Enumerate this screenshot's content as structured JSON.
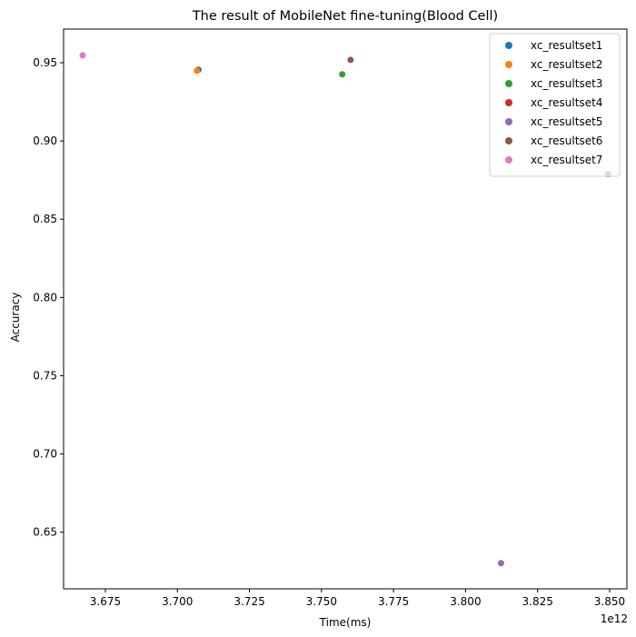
{
  "chart_data": {
    "type": "scatter",
    "title": "The result of MobileNet fine-tuning(Blood Cell)",
    "xlabel": "Time(ms)",
    "ylabel": "Accuracy",
    "x_offset_label": "1e12",
    "xlim": [
      3.6605,
      3.856
    ],
    "ylim": [
      0.6138,
      0.9715
    ],
    "x_ticks": [
      3.675,
      3.7,
      3.725,
      3.75,
      3.775,
      3.8,
      3.825,
      3.85
    ],
    "x_tick_labels": [
      "3.675",
      "3.700",
      "3.725",
      "3.750",
      "3.775",
      "3.800",
      "3.825",
      "3.850"
    ],
    "y_ticks": [
      0.65,
      0.7,
      0.75,
      0.8,
      0.85,
      0.9,
      0.95
    ],
    "y_tick_labels": [
      "0.65",
      "0.70",
      "0.75",
      "0.80",
      "0.85",
      "0.90",
      "0.95"
    ],
    "grid": false,
    "legend_position": "top-right",
    "series": [
      {
        "name": "xc_resultset1",
        "color": "#1f77b4",
        "x": 3.7073,
        "y": 0.9455
      },
      {
        "name": "xc_resultset2",
        "color": "#ff7f0e",
        "x": 3.7068,
        "y": 0.9449
      },
      {
        "name": "xc_resultset3",
        "color": "#2ca02c",
        "x": 3.7572,
        "y": 0.9426
      },
      {
        "name": "xc_resultset4",
        "color": "#d62728",
        "x": 3.8495,
        "y": 0.8789
      },
      {
        "name": "xc_resultset5",
        "color": "#9467bd",
        "x": 3.8123,
        "y": 0.6302
      },
      {
        "name": "xc_resultset6",
        "color": "#8c564b",
        "x": 3.7601,
        "y": 0.9518
      },
      {
        "name": "xc_resultset7",
        "color": "#e377c2",
        "x": 3.6671,
        "y": 0.9547
      }
    ]
  }
}
